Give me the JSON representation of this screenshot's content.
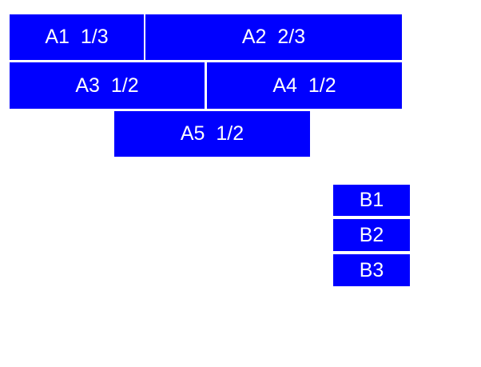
{
  "colors": {
    "page_bg": "#ffffff",
    "box_bg": "#0000ff",
    "box_text": "#ffffff"
  },
  "boxes": {
    "a1": {
      "label": "A1  1/3"
    },
    "a2": {
      "label": "A2  2/3"
    },
    "a3": {
      "label": "A3  1/2"
    },
    "a4": {
      "label": "A4  1/2"
    },
    "a5": {
      "label": "A5  1/2"
    },
    "b1": {
      "label": "B1"
    },
    "b2": {
      "label": "B2"
    },
    "b3": {
      "label": "B3"
    }
  }
}
